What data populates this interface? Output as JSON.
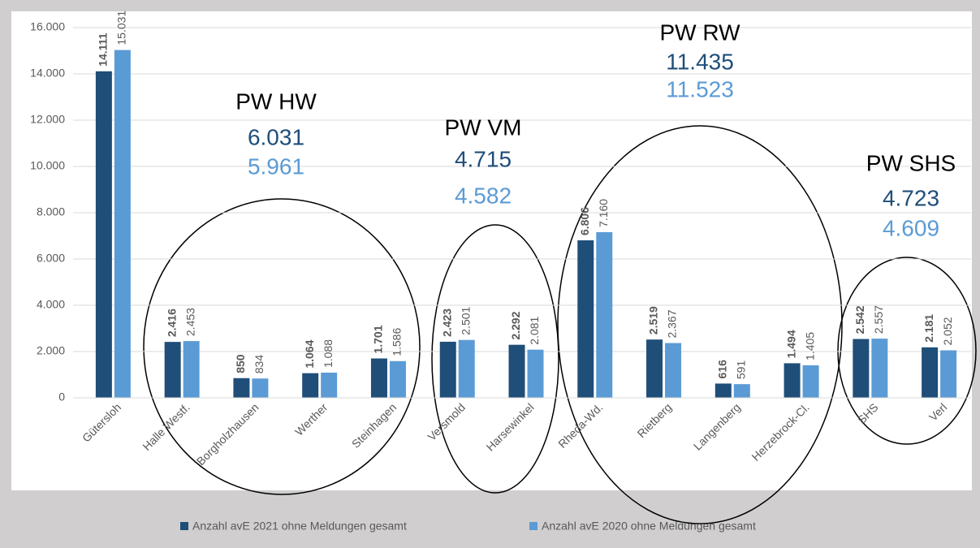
{
  "chart_data": {
    "type": "bar",
    "categories": [
      "Gütersloh",
      "Halle Westf.",
      "Borgholzhausen",
      "Werther",
      "Steinhagen",
      "Versmold",
      "Harsewinkel",
      "Rheda-Wd.",
      "Rietberg",
      "Langenberg",
      "Herzebrock-Cl.",
      "SHS",
      "Verl"
    ],
    "series": [
      {
        "name": "Anzahl avE 2021 ohne Meldungen gesamt",
        "color": "#1f4e79",
        "values": [
          14111,
          2416,
          850,
          1064,
          1701,
          2423,
          2292,
          6806,
          2519,
          616,
          1494,
          2542,
          2181
        ],
        "value_labels": [
          "14.111",
          "2.416",
          "850",
          "1.064",
          "1.701",
          "2.423",
          "2.292",
          "6.806",
          "2.519",
          "616",
          "1.494",
          "2.542",
          "2.181"
        ]
      },
      {
        "name": "Anzahl avE 2020 ohne Meldungen gesamt",
        "color": "#5b9bd5",
        "values": [
          15031,
          2453,
          834,
          1088,
          1586,
          2501,
          2081,
          7160,
          2367,
          591,
          1405,
          2557,
          2052
        ],
        "value_labels": [
          "15.031",
          "2.453",
          "834",
          "1.088",
          "1.586",
          "2.501",
          "2.081",
          "7.160",
          "2.367",
          "591",
          "1.405",
          "2.557",
          "2.052"
        ]
      }
    ],
    "ylim": [
      0,
      16000
    ],
    "yticks": [
      0,
      {
        "value": 2000,
        "label": "2.000"
      },
      {
        "value": 4000,
        "label": "4.000"
      },
      {
        "value": 6000,
        "label": "6.000"
      },
      {
        "value": 8000,
        "label": "8.000"
      },
      {
        "value": 10000,
        "label": "10.000"
      },
      {
        "value": 12000,
        "label": "12.000"
      },
      {
        "value": 14000,
        "label": "14.000"
      },
      {
        "value": 16000,
        "label": "16.000"
      }
    ],
    "grid": true,
    "legend": "bottom",
    "annotations": [
      {
        "text": "PW HW",
        "lines": [
          "6.031",
          "5.961"
        ]
      },
      {
        "text": "PW VM",
        "lines": [
          "4.715",
          "4.582"
        ]
      },
      {
        "text": "PW RW",
        "lines": [
          "11.435",
          "11.523"
        ]
      },
      {
        "text": "PW SHS",
        "lines": [
          "4.723",
          "4.609"
        ]
      }
    ]
  }
}
